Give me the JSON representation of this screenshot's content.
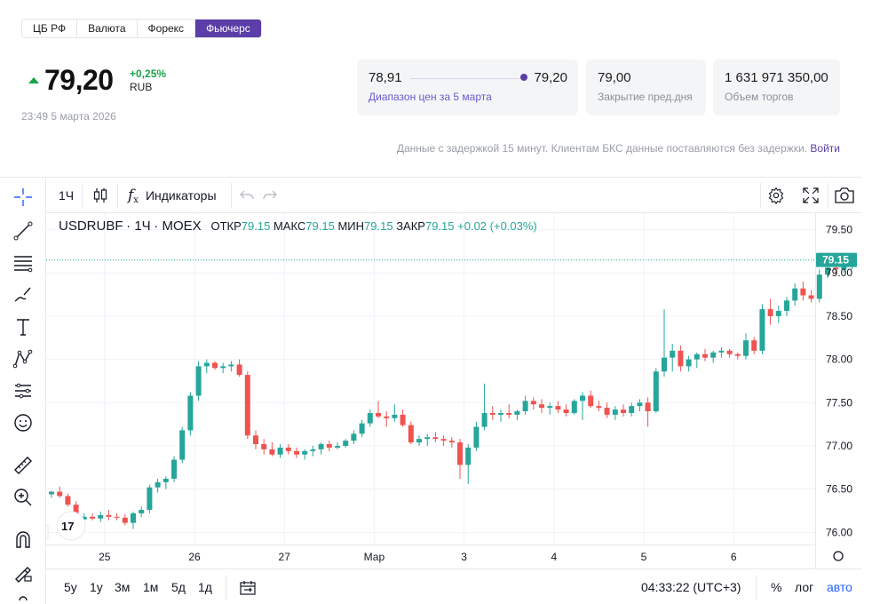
{
  "tabs": [
    {
      "label": "ЦБ РФ",
      "active": false
    },
    {
      "label": "Валюта",
      "active": false
    },
    {
      "label": "Форекс",
      "active": false
    },
    {
      "label": "Фьючерс",
      "active": true
    }
  ],
  "quote": {
    "price": "79,20",
    "change": "+0,25%",
    "currency": "RUB",
    "timestamp": "23:49 5 марта 2026"
  },
  "cards": {
    "range": {
      "low": "78,91",
      "high": "79,20",
      "label": "Диапазон цен за 5 марта"
    },
    "prev_close": {
      "value": "79,00",
      "label": "Закрытие пред.дня"
    },
    "volume": {
      "value": "1 631 971 350,00",
      "label": "Объем торгов"
    }
  },
  "notice": {
    "text": "Данные с задержкой 15 минут. Клиентам БКС данные поставляются без задержки.",
    "link": "Войти"
  },
  "toolbar": {
    "interval": "1Ч",
    "indicators": "Индикаторы"
  },
  "legend": {
    "symbol": "USDRUBF",
    "interval": "1Ч",
    "exchange": "MOEX",
    "open_label": "ОТКР",
    "open": "79.15",
    "high_label": "МАКС",
    "high": "79.15",
    "low_label": "МИН",
    "low": "79.15",
    "close_label": "ЗАКР",
    "close": "79.15",
    "change": "+0.02 (+0.03%)"
  },
  "bottom": {
    "ranges": [
      "5у",
      "1у",
      "3м",
      "1м",
      "5д",
      "1д"
    ],
    "time": "04:33:22 (UTC+3)",
    "percent": "%",
    "log": "лог",
    "auto": "авто"
  },
  "colors": {
    "up": "#26a69a",
    "down": "#ef5350",
    "accent": "#5b3ea8",
    "green": "#1aa34a"
  },
  "chart_data": {
    "type": "candlestick",
    "y_ticks": [
      "79.50",
      "79.00",
      "78.50",
      "78.00",
      "77.50",
      "77.00",
      "76.50",
      "76.00"
    ],
    "ylim": [
      75.86,
      79.69
    ],
    "x_ticks": [
      {
        "label": "25",
        "index": 6.5
      },
      {
        "label": "26",
        "index": 17.5
      },
      {
        "label": "27",
        "index": 28.5
      },
      {
        "label": "Мар",
        "index": 39.5
      },
      {
        "label": "3",
        "index": 50.5
      },
      {
        "label": "4",
        "index": 61.5
      },
      {
        "label": "5",
        "index": 72.5
      },
      {
        "label": "6",
        "index": 83.5
      }
    ],
    "last_price": "79.15",
    "last_value": 79.15,
    "candles": [
      [
        76.44,
        76.48,
        76.4,
        76.47
      ],
      [
        76.47,
        76.53,
        76.4,
        76.42
      ],
      [
        76.42,
        76.45,
        76.3,
        76.32
      ],
      [
        76.32,
        76.36,
        76.08,
        76.15
      ],
      [
        76.15,
        76.22,
        76.1,
        76.18
      ],
      [
        76.18,
        76.22,
        76.14,
        76.16
      ],
      [
        76.16,
        76.24,
        76.12,
        76.2
      ],
      [
        76.2,
        76.26,
        76.14,
        76.18
      ],
      [
        76.18,
        76.22,
        76.14,
        76.17
      ],
      [
        76.17,
        76.21,
        76.08,
        76.11
      ],
      [
        76.11,
        76.24,
        76.04,
        76.22
      ],
      [
        76.22,
        76.3,
        76.18,
        76.26
      ],
      [
        76.26,
        76.55,
        76.22,
        76.52
      ],
      [
        76.52,
        76.62,
        76.46,
        76.58
      ],
      [
        76.58,
        76.65,
        76.5,
        76.62
      ],
      [
        76.62,
        76.88,
        76.58,
        76.84
      ],
      [
        76.84,
        77.22,
        76.8,
        77.18
      ],
      [
        77.18,
        77.62,
        77.12,
        77.58
      ],
      [
        77.58,
        77.98,
        77.52,
        77.92
      ],
      [
        77.92,
        78.0,
        77.84,
        77.96
      ],
      [
        77.96,
        77.98,
        77.88,
        77.9
      ],
      [
        77.9,
        77.96,
        77.84,
        77.92
      ],
      [
        77.92,
        77.98,
        77.86,
        77.94
      ],
      [
        77.94,
        78.0,
        77.8,
        77.82
      ],
      [
        77.82,
        77.86,
        77.08,
        77.12
      ],
      [
        77.12,
        77.18,
        76.96,
        77.02
      ],
      [
        77.02,
        77.08,
        76.9,
        76.96
      ],
      [
        76.96,
        77.04,
        76.88,
        76.9
      ],
      [
        76.9,
        77.02,
        76.86,
        76.98
      ],
      [
        76.98,
        77.02,
        76.9,
        76.94
      ],
      [
        76.94,
        76.98,
        76.86,
        76.9
      ],
      [
        76.9,
        76.96,
        76.84,
        76.94
      ],
      [
        76.94,
        77.0,
        76.88,
        76.96
      ],
      [
        76.96,
        77.04,
        76.9,
        77.02
      ],
      [
        77.02,
        77.06,
        76.94,
        76.98
      ],
      [
        76.98,
        77.04,
        76.96,
        77.0
      ],
      [
        77.0,
        77.08,
        76.98,
        77.06
      ],
      [
        77.06,
        77.18,
        77.02,
        77.14
      ],
      [
        77.14,
        77.3,
        77.1,
        77.26
      ],
      [
        77.26,
        77.42,
        77.22,
        77.38
      ],
      [
        77.38,
        77.52,
        77.32,
        77.34
      ],
      [
        77.34,
        77.4,
        77.22,
        77.32
      ],
      [
        77.32,
        77.48,
        77.28,
        77.36
      ],
      [
        77.36,
        77.42,
        77.22,
        77.24
      ],
      [
        77.24,
        77.28,
        77.02,
        77.04
      ],
      [
        77.04,
        77.12,
        77.0,
        77.08
      ],
      [
        77.08,
        77.14,
        77.0,
        77.1
      ],
      [
        77.1,
        77.16,
        77.04,
        77.08
      ],
      [
        77.08,
        77.12,
        77.0,
        77.06
      ],
      [
        77.06,
        77.1,
        76.98,
        77.04
      ],
      [
        77.04,
        77.08,
        76.62,
        76.78
      ],
      [
        76.78,
        77.02,
        76.56,
        76.98
      ],
      [
        76.98,
        77.28,
        76.94,
        77.22
      ],
      [
        77.22,
        77.72,
        77.18,
        77.38
      ],
      [
        77.38,
        77.46,
        77.3,
        77.36
      ],
      [
        77.36,
        77.42,
        77.28,
        77.38
      ],
      [
        77.38,
        77.48,
        77.32,
        77.36
      ],
      [
        77.36,
        77.42,
        77.3,
        77.4
      ],
      [
        77.4,
        77.58,
        77.36,
        77.52
      ],
      [
        77.52,
        77.56,
        77.42,
        77.48
      ],
      [
        77.48,
        77.54,
        77.38,
        77.44
      ],
      [
        77.44,
        77.5,
        77.36,
        77.46
      ],
      [
        77.46,
        77.52,
        77.38,
        77.42
      ],
      [
        77.42,
        77.48,
        77.34,
        77.38
      ],
      [
        77.38,
        77.54,
        77.36,
        77.52
      ],
      [
        77.52,
        77.62,
        77.3,
        77.58
      ],
      [
        77.58,
        77.64,
        77.44,
        77.46
      ],
      [
        77.46,
        77.52,
        77.4,
        77.44
      ],
      [
        77.44,
        77.5,
        77.32,
        77.36
      ],
      [
        77.36,
        77.46,
        77.3,
        77.42
      ],
      [
        77.42,
        77.48,
        77.34,
        77.38
      ],
      [
        77.38,
        77.5,
        77.34,
        77.46
      ],
      [
        77.46,
        77.54,
        77.4,
        77.5
      ],
      [
        77.5,
        77.56,
        77.22,
        77.4
      ],
      [
        77.4,
        77.9,
        77.38,
        77.86
      ],
      [
        77.86,
        78.58,
        77.8,
        78.02
      ],
      [
        78.02,
        78.18,
        77.86,
        78.1
      ],
      [
        78.1,
        78.16,
        77.86,
        77.92
      ],
      [
        77.92,
        78.04,
        77.86,
        78.0
      ],
      [
        78.0,
        78.08,
        77.9,
        78.06
      ],
      [
        78.06,
        78.12,
        77.98,
        78.02
      ],
      [
        78.02,
        78.1,
        77.96,
        78.08
      ],
      [
        78.08,
        78.14,
        78.02,
        78.1
      ],
      [
        78.1,
        78.12,
        78.02,
        78.06
      ],
      [
        78.06,
        78.08,
        78.0,
        78.04
      ],
      [
        78.04,
        78.3,
        78.0,
        78.22
      ],
      [
        78.22,
        78.26,
        78.06,
        78.1
      ],
      [
        78.1,
        78.64,
        78.06,
        78.58
      ],
      [
        78.58,
        78.7,
        78.4,
        78.5
      ],
      [
        78.5,
        78.62,
        78.42,
        78.56
      ],
      [
        78.56,
        78.72,
        78.5,
        78.68
      ],
      [
        78.68,
        78.88,
        78.62,
        78.82
      ],
      [
        78.82,
        78.9,
        78.68,
        78.74
      ],
      [
        78.74,
        78.8,
        78.66,
        78.7
      ],
      [
        78.7,
        79.04,
        78.66,
        78.98
      ],
      [
        78.98,
        79.1,
        78.94,
        79.06
      ],
      [
        79.06,
        79.12,
        78.98,
        79.04
      ],
      [
        79.04,
        79.14,
        79.0,
        79.08
      ],
      [
        79.08,
        79.2,
        79.04,
        79.15
      ]
    ]
  }
}
